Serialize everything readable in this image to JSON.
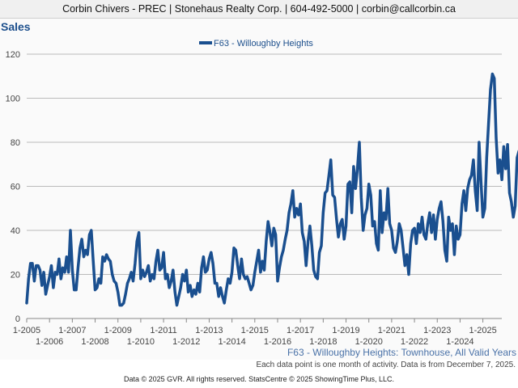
{
  "header": {
    "text": "Corbin Chivers - PREC | Stonehaus Realty Corp. | 604-492-5000 | corbin@callcorbin.ca"
  },
  "page_title": "Sales",
  "subtitle": "F63 - Willoughby Heights: Townhouse, All Valid Years",
  "note": "Each data point is one month of activity. Data is from December 7, 2025.",
  "footer": "Data © 2025 GVR. All rights reserved. StatsCentre © 2025 ShowingTime Plus, LLC.",
  "colors": {
    "series": "#1a4f8f",
    "grid": "#bbbbbb",
    "axis": "#888888",
    "title": "#1c4f8c"
  },
  "chart_data": {
    "type": "line",
    "title": "Sales",
    "xlabel": "",
    "ylabel": "",
    "ylim": [
      0,
      120
    ],
    "yticks": [
      0,
      20,
      40,
      60,
      80,
      100,
      120
    ],
    "xlim": [
      2005,
      2025.83
    ],
    "xticks_upper": [
      {
        "label": "1-2005",
        "year": 2005
      },
      {
        "label": "1-2007",
        "year": 2007
      },
      {
        "label": "1-2009",
        "year": 2009
      },
      {
        "label": "1-2011",
        "year": 2011
      },
      {
        "label": "1-2013",
        "year": 2013
      },
      {
        "label": "1-2015",
        "year": 2015
      },
      {
        "label": "1-2017",
        "year": 2017
      },
      {
        "label": "1-2019",
        "year": 2019
      },
      {
        "label": "1-2021",
        "year": 2021
      },
      {
        "label": "1-2023",
        "year": 2023
      },
      {
        "label": "1-2025",
        "year": 2025
      }
    ],
    "xticks_lower": [
      {
        "label": "1-2006",
        "year": 2006
      },
      {
        "label": "1-2008",
        "year": 2008
      },
      {
        "label": "1-2010",
        "year": 2010
      },
      {
        "label": "1-2012",
        "year": 2012
      },
      {
        "label": "1-2014",
        "year": 2014
      },
      {
        "label": "1-2016",
        "year": 2016
      },
      {
        "label": "1-2018",
        "year": 2018
      },
      {
        "label": "1-2020",
        "year": 2020
      },
      {
        "label": "1-2022",
        "year": 2022
      },
      {
        "label": "1-2024",
        "year": 2024
      }
    ],
    "legend_position": "top-center",
    "series": [
      {
        "name": "F63 - Willoughby Heights",
        "start": "2005-01",
        "values": [
          7,
          18,
          25,
          25,
          17,
          24,
          24,
          22,
          15,
          21,
          11,
          15,
          19,
          24,
          14,
          21,
          20,
          27,
          18,
          23,
          21,
          28,
          21,
          40,
          22,
          13,
          13,
          23,
          32,
          36,
          28,
          31,
          29,
          38,
          40,
          26,
          13,
          14,
          18,
          16,
          28,
          26,
          29,
          27,
          26,
          20,
          17,
          16,
          12,
          6,
          6,
          7,
          11,
          16,
          18,
          21,
          17,
          25,
          35,
          39,
          18,
          22,
          19,
          21,
          24,
          17,
          20,
          18,
          26,
          31,
          22,
          23,
          30,
          18,
          20,
          14,
          17,
          22,
          12,
          6,
          10,
          14,
          20,
          17,
          22,
          12,
          15,
          10,
          13,
          11,
          16,
          12,
          23,
          28,
          21,
          22,
          27,
          30,
          25,
          16,
          16,
          10,
          14,
          10,
          7,
          13,
          18,
          16,
          21,
          32,
          31,
          24,
          18,
          27,
          20,
          18,
          19,
          16,
          13,
          15,
          21,
          26,
          31,
          21,
          26,
          22,
          35,
          44,
          39,
          33,
          41,
          38,
          17,
          23,
          28,
          31,
          36,
          40,
          48,
          52,
          58,
          46,
          50,
          47,
          52,
          39,
          35,
          24,
          35,
          42,
          33,
          22,
          19,
          18,
          30,
          33,
          48,
          57,
          58,
          65,
          72,
          56,
          55,
          45,
          37,
          43,
          45,
          36,
          42,
          61,
          62,
          48,
          69,
          59,
          68,
          80,
          55,
          40,
          47,
          50,
          61,
          56,
          42,
          44,
          34,
          31,
          58,
          39,
          48,
          45,
          59,
          43,
          40,
          32,
          30,
          35,
          43,
          40,
          32,
          24,
          29,
          20,
          34,
          40,
          41,
          34,
          43,
          39,
          46,
          38,
          36,
          43,
          48,
          39,
          47,
          36,
          45,
          50,
          53,
          44,
          31,
          26,
          46,
          40,
          43,
          29,
          42,
          36,
          38,
          52,
          58,
          49,
          59,
          63,
          65,
          72,
          58,
          49,
          80,
          62,
          46,
          50,
          73,
          89,
          104,
          111,
          109,
          82,
          66,
          72,
          63,
          78,
          68,
          79,
          57,
          53,
          46,
          51,
          73,
          76,
          46,
          54,
          44,
          27,
          43,
          33,
          19,
          27,
          29,
          24,
          22,
          25,
          17,
          14,
          37,
          61,
          53,
          44,
          51,
          50,
          67,
          51,
          40,
          37,
          33,
          30,
          28,
          23,
          20,
          18,
          24,
          40,
          42,
          46,
          57,
          51,
          41,
          50,
          45,
          43,
          48,
          57,
          43,
          47,
          42,
          37,
          33,
          49,
          40,
          35,
          38,
          45,
          47,
          46,
          45,
          38,
          45,
          40,
          48,
          42,
          48,
          50,
          39,
          45,
          37,
          46,
          42,
          48,
          50,
          44
        ]
      }
    ]
  }
}
